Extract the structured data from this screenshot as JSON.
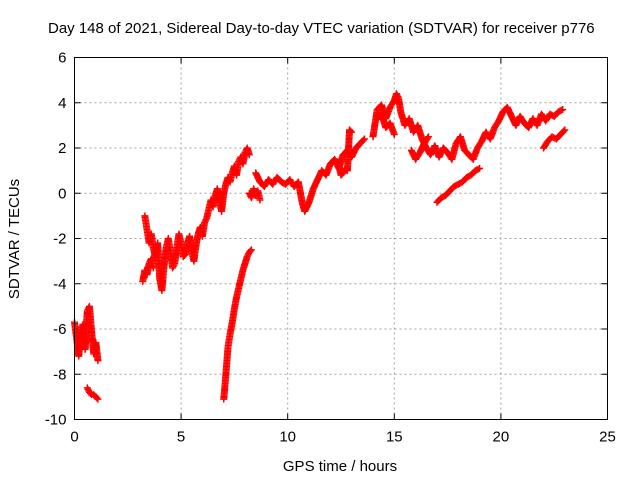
{
  "chart_data": {
    "type": "scatter",
    "title": "Day 148 of 2021, Sidereal Day-to-day VTEC variation (SDTVAR) for receiver p776",
    "xlabel": "GPS time / hours",
    "ylabel": "SDTVAR / TECUs",
    "xlim": [
      0,
      25
    ],
    "ylim": [
      -10,
      6
    ],
    "xticks": [
      "0",
      "5",
      "10",
      "15",
      "20",
      "25"
    ],
    "yticks": [
      "-10",
      "-8",
      "-6",
      "-4",
      "-2",
      "0",
      "2",
      "4",
      "6"
    ],
    "grid": true,
    "legend": "none",
    "marker": "plus",
    "color": "#ff0000",
    "series": [
      {
        "x": [
          0.0,
          0.1,
          0.2,
          0.3,
          0.4,
          0.5,
          0.6,
          0.7,
          0.8,
          0.9,
          1.0,
          1.1
        ],
        "y": [
          -5.7,
          -6.4,
          -7.2,
          -6.0,
          -5.8,
          -6.9,
          -5.2,
          -5.0,
          -6.1,
          -7.1,
          -6.6,
          -7.4
        ]
      },
      {
        "x": [
          0.6,
          0.7,
          0.8,
          0.9,
          1.0,
          1.1
        ],
        "y": [
          -8.6,
          -8.8,
          -8.9,
          -8.9,
          -9.0,
          -9.1
        ]
      },
      {
        "x": [
          3.3,
          3.4,
          3.5,
          3.6,
          3.7,
          3.8,
          3.9,
          4.0,
          4.1,
          4.2,
          4.3,
          4.4,
          4.5,
          4.6,
          4.7,
          4.8,
          4.9,
          5.0,
          5.1,
          5.2,
          5.3,
          5.4,
          5.5,
          5.6,
          5.7,
          5.8,
          5.9,
          6.0,
          6.1,
          6.2,
          6.3,
          6.4,
          6.5,
          6.6,
          6.7,
          6.8,
          6.9,
          7.0,
          7.1,
          7.2,
          7.3,
          7.4,
          7.5,
          7.6,
          7.7,
          7.8,
          7.9,
          8.0,
          8.1,
          8.2
        ],
        "y": [
          -1.0,
          -1.6,
          -2.2,
          -1.8,
          -2.4,
          -2.9,
          -2.2,
          -3.8,
          -4.3,
          -3.2,
          -2.4,
          -2.0,
          -2.6,
          -3.3,
          -3.1,
          -2.4,
          -1.8,
          -2.2,
          -2.8,
          -2.7,
          -2.2,
          -1.9,
          -2.6,
          -3.0,
          -2.3,
          -1.8,
          -1.5,
          -1.9,
          -1.3,
          -1.1,
          -0.7,
          -0.3,
          -0.6,
          -0.1,
          0.2,
          -0.4,
          -0.8,
          0.0,
          0.4,
          0.7,
          0.5,
          0.9,
          1.2,
          0.8,
          1.4,
          1.6,
          1.3,
          1.8,
          2.0,
          1.7
        ]
      },
      {
        "x": [
          3.2,
          3.3,
          3.4,
          3.5,
          3.6,
          3.7
        ],
        "y": [
          -3.9,
          -3.4,
          -3.6,
          -3.1,
          -2.9,
          -3.3
        ]
      },
      {
        "x": [
          7.0,
          7.05,
          7.1,
          7.15,
          7.2,
          7.3,
          7.4,
          7.5,
          7.6,
          7.7,
          7.8,
          7.9,
          8.0,
          8.1,
          8.2,
          8.3
        ],
        "y": [
          -9.1,
          -8.6,
          -8.0,
          -7.4,
          -6.8,
          -6.2,
          -5.7,
          -5.1,
          -4.6,
          -4.2,
          -3.8,
          -3.4,
          -3.1,
          -2.8,
          -2.6,
          -2.5
        ]
      },
      {
        "x": [
          8.5,
          8.7,
          8.9,
          9.1,
          9.3,
          9.5,
          9.7,
          9.9,
          10.1,
          10.3,
          10.5,
          10.6,
          10.7,
          10.8,
          11.0,
          11.2,
          11.4,
          11.6,
          11.8,
          12.0,
          12.2,
          12.4,
          12.6,
          12.8,
          13.0,
          13.2,
          13.4,
          13.6
        ],
        "y": [
          0.9,
          0.5,
          0.3,
          0.6,
          0.4,
          0.7,
          0.5,
          0.4,
          0.6,
          0.3,
          0.5,
          0.0,
          -0.5,
          -0.8,
          -0.4,
          0.2,
          0.6,
          1.0,
          0.8,
          1.3,
          1.5,
          1.1,
          1.7,
          1.9,
          1.6,
          2.0,
          2.2,
          2.4
        ]
      },
      {
        "x": [
          8.2,
          8.3,
          8.4,
          8.5,
          8.6,
          8.7
        ],
        "y": [
          0.0,
          -0.2,
          0.2,
          -0.1,
          0.1,
          -0.3
        ]
      },
      {
        "x": [
          12.3,
          12.4,
          12.5,
          12.6,
          12.7,
          12.8,
          12.9,
          13.0
        ],
        "y": [
          1.4,
          1.2,
          0.8,
          0.9,
          1.1,
          1.0,
          2.8,
          2.7
        ]
      },
      {
        "x": [
          14.0,
          14.2,
          14.4,
          14.6,
          14.8,
          15.0,
          15.1,
          15.2,
          15.3,
          15.5,
          15.7,
          15.9,
          16.1,
          16.3,
          16.5,
          16.7,
          16.9,
          17.1,
          17.3,
          17.5,
          17.7,
          17.9,
          18.1,
          18.3,
          18.5,
          18.7,
          18.9,
          19.1,
          19.3,
          19.5,
          19.7,
          19.9,
          20.1,
          20.3,
          20.5,
          20.7,
          20.9,
          21.1,
          21.3,
          21.5,
          21.7,
          21.9,
          22.1,
          22.3,
          22.5,
          22.7,
          22.9
        ],
        "y": [
          2.5,
          3.7,
          3.9,
          3.3,
          3.8,
          4.1,
          4.4,
          4.2,
          3.6,
          3.0,
          3.3,
          2.7,
          3.0,
          2.4,
          2.0,
          1.7,
          2.1,
          1.6,
          2.0,
          1.8,
          1.5,
          2.2,
          2.5,
          1.9,
          1.7,
          1.5,
          2.0,
          2.3,
          2.7,
          2.4,
          2.9,
          3.2,
          3.6,
          3.8,
          3.4,
          3.0,
          3.4,
          3.1,
          2.9,
          3.3,
          3.0,
          3.5,
          3.2,
          3.5,
          3.4,
          3.6,
          3.7
        ]
      },
      {
        "x": [
          14.2,
          14.4,
          14.6,
          14.8,
          15.0
        ],
        "y": [
          3.3,
          3.5,
          2.9,
          3.1,
          2.6
        ]
      },
      {
        "x": [
          15.8,
          16.0,
          16.2,
          16.4,
          16.6
        ],
        "y": [
          1.9,
          1.5,
          1.8,
          2.2,
          2.5
        ]
      },
      {
        "x": [
          17.0,
          17.2,
          17.4,
          17.6,
          17.8,
          18.0,
          18.2,
          18.4,
          18.6,
          18.8,
          19.0
        ],
        "y": [
          -0.4,
          -0.2,
          -0.1,
          0.1,
          0.3,
          0.4,
          0.5,
          0.7,
          0.8,
          1.0,
          1.1
        ]
      },
      {
        "x": [
          22.0,
          22.2,
          22.4,
          22.6,
          22.8,
          23.0
        ],
        "y": [
          2.0,
          2.3,
          2.5,
          2.4,
          2.6,
          2.8
        ]
      }
    ]
  }
}
